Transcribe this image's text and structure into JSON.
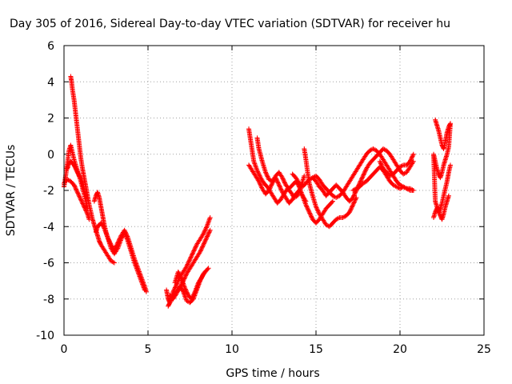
{
  "chart_data": {
    "type": "scatter",
    "title": "Day 305 of 2016, Sidereal Day-to-day VTEC variation (SDTVAR) for receiver hu",
    "xlabel": "GPS time / hours",
    "ylabel": "SDTVAR / TECUs",
    "xlim": [
      0,
      25
    ],
    "ylim": [
      -10,
      6
    ],
    "xticks": [
      "0",
      "5",
      "10",
      "15",
      "20",
      "25"
    ],
    "yticks": [
      "-10",
      "-8",
      "-6",
      "-4",
      "-2",
      "0",
      "2",
      "4",
      "6"
    ],
    "grid": true,
    "marker": "plus",
    "color": "#ff0000",
    "series": [
      {
        "x": [
          0.0,
          0.1,
          0.2,
          0.3,
          0.4,
          0.6,
          0.8,
          1.0,
          1.2,
          1.4
        ],
        "y": [
          -1.8,
          -1.2,
          -0.5,
          0.2,
          0.5,
          -0.3,
          -0.9,
          -1.5,
          -2.2,
          -3.0
        ]
      },
      {
        "x": [
          0.0,
          0.2,
          0.4,
          0.6,
          0.8,
          1.0,
          1.2,
          1.4,
          1.5
        ],
        "y": [
          -1.6,
          -1.4,
          -1.5,
          -1.7,
          -2.1,
          -2.5,
          -2.9,
          -3.3,
          -3.6
        ]
      },
      {
        "x": [
          0.2,
          0.3,
          0.4,
          0.5,
          0.6,
          0.7,
          0.8,
          0.9,
          1.0,
          1.1,
          1.2
        ],
        "y": [
          -0.8,
          -0.5,
          -0.4,
          -0.5,
          -0.6,
          -0.8,
          -1.0,
          -1.2,
          -1.3,
          -1.6,
          -2.0
        ]
      },
      {
        "x": [
          0.4,
          0.45,
          0.5,
          0.6,
          0.7,
          0.8,
          0.9,
          1.0,
          1.1,
          1.2,
          1.3,
          1.4,
          1.5,
          1.6,
          1.7,
          1.8,
          1.9,
          2.0,
          2.1,
          2.2,
          2.4,
          2.6,
          2.8,
          3.0
        ],
        "y": [
          4.3,
          4.0,
          3.6,
          3.0,
          2.2,
          1.4,
          0.6,
          -0.2,
          -0.8,
          -1.3,
          -1.8,
          -2.3,
          -2.8,
          -3.2,
          -3.6,
          -3.9,
          -4.2,
          -4.5,
          -4.8,
          -5.0,
          -5.3,
          -5.6,
          -5.9,
          -6.0
        ]
      },
      {
        "x": [
          1.8,
          1.9,
          2.0,
          2.1,
          2.2,
          2.3,
          2.4,
          2.5,
          2.6,
          2.8,
          3.0,
          3.2,
          3.4,
          3.6,
          3.8,
          4.0,
          4.2,
          4.4,
          4.6,
          4.8,
          4.9
        ],
        "y": [
          -2.6,
          -2.3,
          -2.1,
          -2.4,
          -2.9,
          -3.4,
          -3.9,
          -4.3,
          -4.6,
          -5.0,
          -5.3,
          -4.9,
          -4.5,
          -4.2,
          -4.6,
          -5.2,
          -5.8,
          -6.3,
          -6.8,
          -7.3,
          -7.6
        ]
      },
      {
        "x": [
          1.9,
          2.0,
          2.2,
          2.4,
          2.6,
          2.8,
          3.0,
          3.2,
          3.4,
          3.6,
          3.8,
          4.0,
          4.2,
          4.4,
          4.6,
          4.8
        ],
        "y": [
          -4.3,
          -4.0,
          -3.8,
          -4.1,
          -4.6,
          -5.2,
          -5.5,
          -5.2,
          -4.7,
          -4.3,
          -4.8,
          -5.4,
          -6.0,
          -6.5,
          -7.0,
          -7.5
        ]
      },
      {
        "x": [
          6.1,
          6.2,
          6.3,
          6.4,
          6.5,
          6.7,
          6.9,
          7.1,
          7.3,
          7.5,
          7.7,
          7.9,
          8.1,
          8.3,
          8.5,
          8.7
        ],
        "y": [
          -7.5,
          -8.0,
          -8.2,
          -7.9,
          -7.6,
          -7.2,
          -6.8,
          -6.5,
          -6.2,
          -5.8,
          -5.4,
          -5.0,
          -4.7,
          -4.4,
          -4.0,
          -3.5
        ]
      },
      {
        "x": [
          6.2,
          6.3,
          6.5,
          6.7,
          6.9,
          7.1,
          7.3,
          7.5,
          7.7,
          7.9,
          8.1,
          8.3,
          8.5,
          8.7
        ],
        "y": [
          -8.4,
          -8.2,
          -7.8,
          -7.6,
          -7.4,
          -7.0,
          -6.6,
          -6.3,
          -6.0,
          -5.7,
          -5.4,
          -5.0,
          -4.6,
          -4.2
        ]
      },
      {
        "x": [
          6.3,
          6.5,
          6.7,
          6.9,
          7.1,
          7.3,
          7.5,
          7.7,
          7.9,
          8.1,
          8.3,
          8.5
        ],
        "y": [
          -7.8,
          -8.0,
          -7.7,
          -7.3,
          -7.6,
          -8.1,
          -8.2,
          -8.0,
          -7.5,
          -7.0,
          -6.6,
          -6.4
        ]
      },
      {
        "x": [
          6.6,
          6.8,
          7.0,
          7.2,
          7.4,
          7.6,
          7.8,
          8.0,
          8.2,
          8.4,
          8.6
        ],
        "y": [
          -7.1,
          -6.5,
          -6.9,
          -7.4,
          -7.8,
          -8.0,
          -7.6,
          -7.1,
          -6.8,
          -6.5,
          -6.3
        ]
      },
      {
        "x": [
          11.0,
          11.1,
          11.2,
          11.3,
          11.5,
          11.7,
          11.9,
          12.1,
          12.3,
          12.5,
          12.7,
          12.9,
          13.1,
          13.3,
          13.5,
          13.7,
          13.9,
          14.1,
          14.3
        ],
        "y": [
          1.4,
          0.8,
          0.2,
          -0.4,
          -0.9,
          -1.3,
          -1.6,
          -1.8,
          -2.1,
          -2.4,
          -2.7,
          -2.5,
          -2.2,
          -1.9,
          -2.1,
          -2.4,
          -2.3,
          -1.8,
          -1.2
        ]
      },
      {
        "x": [
          11.0,
          11.2,
          11.4,
          11.6,
          11.8,
          12.0,
          12.2,
          12.4,
          12.6,
          12.8,
          13.0,
          13.2,
          13.4,
          13.6,
          13.8,
          14.0,
          14.2,
          14.4
        ],
        "y": [
          -0.6,
          -0.9,
          -1.2,
          -1.5,
          -1.9,
          -2.2,
          -2.0,
          -1.6,
          -1.3,
          -1.7,
          -2.1,
          -2.4,
          -2.7,
          -2.5,
          -2.2,
          -2.0,
          -2.3,
          -2.6
        ]
      },
      {
        "x": [
          11.5,
          11.6,
          11.8,
          12.0,
          12.2,
          12.4,
          12.6,
          12.8,
          13.0,
          13.2,
          13.4,
          13.6,
          13.8,
          14.0,
          14.2,
          14.4,
          14.6,
          14.8,
          15.0,
          15.2,
          15.4,
          15.6,
          15.8,
          16.0
        ],
        "y": [
          0.9,
          0.3,
          -0.4,
          -1.0,
          -1.4,
          -1.5,
          -1.2,
          -1.0,
          -1.3,
          -1.7,
          -1.9,
          -1.7,
          -1.5,
          -1.8,
          -2.3,
          -2.8,
          -3.2,
          -3.6,
          -3.8,
          -3.6,
          -3.3,
          -3.0,
          -2.8,
          -2.6
        ]
      },
      {
        "x": [
          14.3,
          14.4,
          14.5,
          14.6,
          14.8,
          15.0,
          15.2,
          15.4,
          15.6,
          15.8,
          16.0,
          16.2,
          16.4,
          16.6,
          16.8,
          17.0,
          17.2,
          17.4
        ],
        "y": [
          0.3,
          -0.3,
          -1.0,
          -1.6,
          -2.3,
          -2.9,
          -3.3,
          -3.6,
          -3.9,
          -4.0,
          -3.8,
          -3.6,
          -3.5,
          -3.5,
          -3.4,
          -3.2,
          -2.8,
          -2.4
        ]
      },
      {
        "x": [
          13.6,
          13.8,
          14.0,
          14.2,
          14.4,
          14.6,
          14.8,
          15.0,
          15.2,
          15.4,
          15.6,
          15.8,
          16.0,
          16.2,
          16.4,
          16.6,
          16.8,
          17.0,
          17.2,
          17.4,
          17.6,
          17.8,
          18.0,
          18.2,
          18.4,
          18.6,
          18.8,
          19.0,
          19.2,
          19.4,
          19.6,
          19.8,
          20.0,
          20.2,
          20.4,
          20.6,
          20.8
        ],
        "y": [
          -1.1,
          -1.3,
          -1.6,
          -1.8,
          -1.6,
          -1.4,
          -1.3,
          -1.2,
          -1.4,
          -1.7,
          -1.9,
          -2.1,
          -2.3,
          -2.4,
          -2.3,
          -2.1,
          -1.8,
          -1.5,
          -1.2,
          -0.9,
          -0.6,
          -0.3,
          0.0,
          0.2,
          0.3,
          0.2,
          0.0,
          -0.3,
          -0.6,
          -0.9,
          -1.2,
          -1.5,
          -1.7,
          -1.8,
          -1.9,
          -1.9,
          -2.0
        ]
      },
      {
        "x": [
          14.8,
          15.0,
          15.2,
          15.4,
          15.6,
          15.8,
          16.0,
          16.2,
          16.4,
          16.6,
          16.8,
          17.0,
          17.2,
          17.4,
          17.6,
          17.8,
          18.0,
          18.2,
          18.4,
          18.6,
          18.8,
          19.0,
          19.2,
          19.4,
          19.6,
          19.8,
          20.0,
          20.2,
          20.4,
          20.6,
          20.8
        ],
        "y": [
          -1.3,
          -1.5,
          -1.8,
          -2.0,
          -2.3,
          -2.1,
          -1.9,
          -1.7,
          -1.9,
          -2.1,
          -2.4,
          -2.6,
          -2.4,
          -2.0,
          -1.6,
          -1.2,
          -0.8,
          -0.5,
          -0.3,
          -0.1,
          0.1,
          0.3,
          0.2,
          0.0,
          -0.3,
          -0.6,
          -0.9,
          -1.1,
          -1.0,
          -0.7,
          -0.4
        ]
      },
      {
        "x": [
          17.2,
          17.4,
          17.6,
          17.8,
          18.0,
          18.2,
          18.4,
          18.6,
          18.8,
          19.0,
          19.2,
          19.4,
          19.6,
          19.8,
          20.0,
          20.2,
          20.4,
          20.6,
          20.8
        ],
        "y": [
          -2.0,
          -1.9,
          -1.8,
          -1.6,
          -1.5,
          -1.3,
          -1.1,
          -0.9,
          -0.7,
          -0.9,
          -1.2,
          -1.5,
          -1.7,
          -1.8,
          -1.9,
          -1.8,
          -1.9,
          -2.0,
          -2.0
        ]
      },
      {
        "x": [
          18.8,
          19.0,
          19.2,
          19.4,
          19.6,
          19.8,
          20.0,
          20.2,
          20.4,
          20.6,
          20.8
        ],
        "y": [
          -0.4,
          -0.8,
          -1.0,
          -1.2,
          -1.1,
          -0.9,
          -0.7,
          -0.6,
          -0.6,
          -0.4,
          0.0
        ]
      },
      {
        "x": [
          22.1,
          22.2,
          22.3,
          22.4,
          22.5,
          22.6,
          22.7,
          22.8,
          22.9,
          23.0,
          22.9,
          22.8,
          22.7,
          22.6,
          22.5,
          22.4,
          22.3,
          22.2,
          22.1,
          22.0,
          22.1,
          22.2,
          22.3,
          22.4,
          22.5,
          22.6,
          22.7,
          22.8,
          22.9
        ],
        "y": [
          1.9,
          1.6,
          1.3,
          0.9,
          0.5,
          0.3,
          0.7,
          1.2,
          1.5,
          1.7,
          0.4,
          0.0,
          -0.3,
          -0.6,
          -1.0,
          -1.3,
          -1.1,
          -0.8,
          -0.4,
          0.0,
          -2.6,
          -2.9,
          -3.1,
          -3.4,
          -3.6,
          -3.3,
          -2.9,
          -2.6,
          -2.3
        ]
      },
      {
        "x": [
          22.0,
          22.1,
          22.2,
          22.3,
          22.4,
          22.5,
          22.6,
          22.7,
          22.8,
          22.9,
          23.0
        ],
        "y": [
          -3.5,
          -3.2,
          -3.0,
          -3.2,
          -3.0,
          -2.7,
          -2.3,
          -1.9,
          -1.5,
          -1.0,
          -0.6
        ]
      }
    ]
  }
}
